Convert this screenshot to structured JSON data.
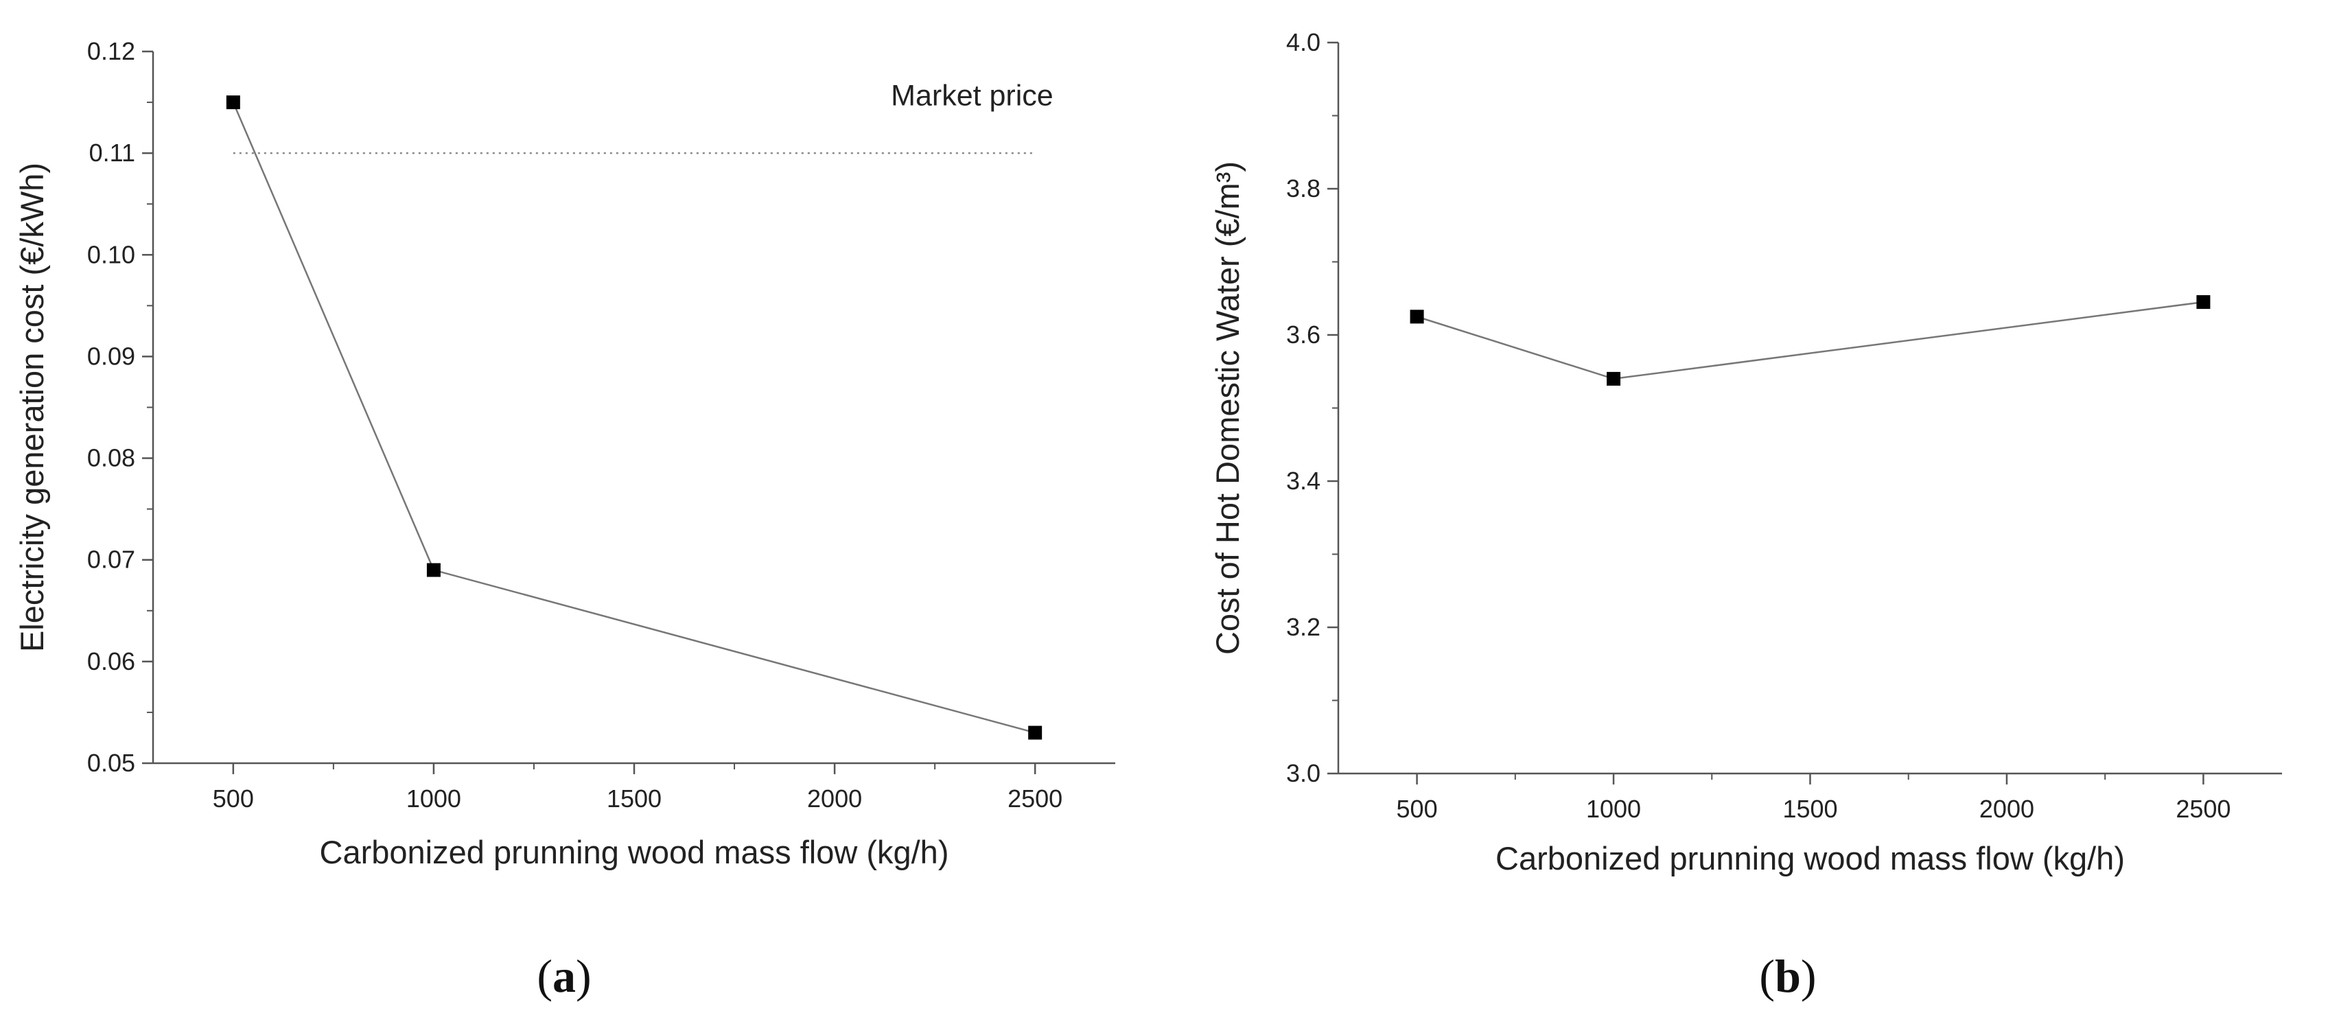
{
  "chart_data": [
    {
      "type": "line",
      "panel_label": "a",
      "title": "",
      "xlabel": "Carbonized prunning wood mass flow (kg/h)",
      "ylabel": "Electricity generation cost (€/kWh)",
      "xlim": [
        300,
        2700
      ],
      "ylim": [
        0.05,
        0.12
      ],
      "x_ticks": [
        500,
        1000,
        1500,
        2000,
        2500
      ],
      "x_tick_labels": [
        "500",
        "1000",
        "1500",
        "2000",
        "2500"
      ],
      "y_ticks": [
        0.05,
        0.06,
        0.07,
        0.08,
        0.09,
        0.1,
        0.11,
        0.12
      ],
      "y_tick_labels": [
        "0.05",
        "0.06",
        "0.07",
        "0.08",
        "0.09",
        "0.10",
        "0.11",
        "0.12"
      ],
      "series": [
        {
          "name": "Electricity generation cost",
          "x": [
            500,
            1000,
            2500
          ],
          "values": [
            0.115,
            0.069,
            0.053
          ]
        }
      ],
      "reference_line": {
        "label": "Market price",
        "value": 0.11,
        "x_range": [
          500,
          2500
        ]
      }
    },
    {
      "type": "line",
      "panel_label": "b",
      "title": "",
      "xlabel": "Carbonized prunning wood mass flow (kg/h)",
      "ylabel": "Cost of Hot Domestic Water (€/m³)",
      "xlim": [
        300,
        2700
      ],
      "ylim": [
        3.0,
        4.0
      ],
      "x_ticks": [
        500,
        1000,
        1500,
        2000,
        2500
      ],
      "x_tick_labels": [
        "500",
        "1000",
        "1500",
        "2000",
        "2500"
      ],
      "y_ticks": [
        3.0,
        3.2,
        3.4,
        3.6,
        3.8,
        4.0
      ],
      "y_tick_labels": [
        "3.0",
        "3.2",
        "3.4",
        "3.6",
        "3.8",
        "4.0"
      ],
      "series": [
        {
          "name": "Cost of Hot Domestic Water",
          "x": [
            500,
            1000,
            2500
          ],
          "values": [
            3.625,
            3.54,
            3.645
          ]
        }
      ]
    }
  ],
  "captions": {
    "a": "a",
    "b": "b"
  }
}
